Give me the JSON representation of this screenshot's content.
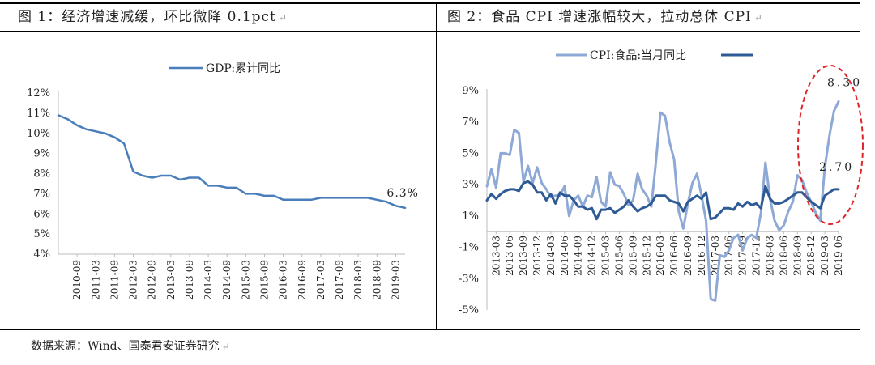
{
  "page": {
    "left_title": "图 1：经济增速减缓，环比微降 0.1pct",
    "right_title": "图 2：食品 CPI 增速涨幅较大，拉动总体 CPI",
    "source": "数据来源：Wind、国泰君安证券研究",
    "paragraph_mark": "↵"
  },
  "chart_data": [
    {
      "type": "line",
      "series": [
        {
          "name": "GDP:累计同比",
          "color": "#4a7ebb",
          "x": [
            "2010-03",
            "2010-06",
            "2010-09",
            "2010-12",
            "2011-03",
            "2011-06",
            "2011-09",
            "2011-12",
            "2012-03",
            "2012-06",
            "2012-09",
            "2012-12",
            "2013-03",
            "2013-06",
            "2013-09",
            "2013-12",
            "2014-03",
            "2014-06",
            "2014-09",
            "2014-12",
            "2015-03",
            "2015-06",
            "2015-09",
            "2015-12",
            "2016-03",
            "2016-06",
            "2016-09",
            "2016-12",
            "2017-03",
            "2017-06",
            "2017-09",
            "2017-12",
            "2018-03",
            "2018-06",
            "2018-09",
            "2018-12",
            "2019-03",
            "2019-06"
          ],
          "values": [
            10.9,
            10.7,
            10.4,
            10.2,
            10.1,
            10.0,
            9.8,
            9.5,
            8.1,
            7.9,
            7.8,
            7.9,
            7.9,
            7.7,
            7.8,
            7.8,
            7.4,
            7.4,
            7.3,
            7.3,
            7.0,
            7.0,
            6.9,
            6.9,
            6.7,
            6.7,
            6.7,
            6.7,
            6.8,
            6.8,
            6.8,
            6.8,
            6.8,
            6.8,
            6.7,
            6.6,
            6.4,
            6.3
          ]
        }
      ],
      "x_tick_labels": [
        "2010-09",
        "2011-03",
        "2011-09",
        "2012-03",
        "2012-09",
        "2013-03",
        "2013-09",
        "2014-03",
        "2014-09",
        "2015-03",
        "2015-09",
        "2016-03",
        "2016-09",
        "2017-03",
        "2017-09",
        "2018-03",
        "2018-09",
        "2019-03"
      ],
      "y_tick_labels": [
        "4%",
        "5%",
        "6%",
        "7%",
        "8%",
        "9%",
        "10%",
        "11%",
        "12%"
      ],
      "ylim": [
        4,
        12
      ],
      "annotations": [
        {
          "text": "6.3%",
          "x": "2019-06",
          "y": 6.3
        }
      ],
      "legend_position": "top-center",
      "grid": false
    },
    {
      "type": "line",
      "series": [
        {
          "name": "CPI:食品:当月同比",
          "color": "#8fa9d6",
          "x": [
            "2013-01",
            "2013-02",
            "2013-03",
            "2013-04",
            "2013-05",
            "2013-06",
            "2013-07",
            "2013-08",
            "2013-09",
            "2013-10",
            "2013-11",
            "2013-12",
            "2014-01",
            "2014-02",
            "2014-03",
            "2014-04",
            "2014-05",
            "2014-06",
            "2014-07",
            "2014-08",
            "2014-09",
            "2014-10",
            "2014-11",
            "2014-12",
            "2015-01",
            "2015-02",
            "2015-03",
            "2015-04",
            "2015-05",
            "2015-06",
            "2015-07",
            "2015-08",
            "2015-09",
            "2015-10",
            "2015-11",
            "2015-12",
            "2016-01",
            "2016-02",
            "2016-03",
            "2016-04",
            "2016-05",
            "2016-06",
            "2016-07",
            "2016-08",
            "2016-09",
            "2016-10",
            "2016-11",
            "2016-12",
            "2017-01",
            "2017-02",
            "2017-03",
            "2017-04",
            "2017-05",
            "2017-06",
            "2017-07",
            "2017-08",
            "2017-09",
            "2017-10",
            "2017-11",
            "2017-12",
            "2018-01",
            "2018-02",
            "2018-03",
            "2018-04",
            "2018-05",
            "2018-06",
            "2018-07",
            "2018-08",
            "2018-09",
            "2018-10",
            "2018-11",
            "2018-12",
            "2019-01",
            "2019-02",
            "2019-03",
            "2019-04",
            "2019-05",
            "2019-06"
          ],
          "values": [
            2.9,
            4.0,
            2.8,
            5.0,
            5.0,
            4.9,
            6.5,
            6.3,
            3.2,
            4.2,
            3.1,
            4.1,
            3.1,
            2.7,
            2.2,
            2.3,
            2.3,
            2.9,
            1.0,
            2.0,
            2.3,
            1.6,
            2.3,
            2.2,
            3.5,
            1.9,
            1.6,
            3.8,
            3.0,
            2.9,
            2.4,
            1.7,
            2.0,
            3.7,
            2.7,
            2.3,
            1.6,
            4.4,
            7.6,
            7.4,
            5.7,
            4.6,
            1.3,
            0.2,
            1.8,
            3.1,
            3.7,
            2.3,
            0.7,
            -4.3,
            -4.4,
            -1.5,
            -1.6,
            -1.2,
            -0.4,
            -0.2,
            -1.2,
            -0.4,
            -0.2,
            -0.4,
            1.2,
            4.4,
            2.1,
            0.7,
            0.1,
            0.4,
            1.3,
            1.9,
            3.6,
            3.3,
            2.5,
            1.9,
            1.2,
            0.7,
            4.1,
            6.1,
            7.7,
            8.3
          ]
        },
        {
          "name": "",
          "color": "#2e5b95",
          "x": [
            "2013-01",
            "2013-02",
            "2013-03",
            "2013-04",
            "2013-05",
            "2013-06",
            "2013-07",
            "2013-08",
            "2013-09",
            "2013-10",
            "2013-11",
            "2013-12",
            "2014-01",
            "2014-02",
            "2014-03",
            "2014-04",
            "2014-05",
            "2014-06",
            "2014-07",
            "2014-08",
            "2014-09",
            "2014-10",
            "2014-11",
            "2014-12",
            "2015-01",
            "2015-02",
            "2015-03",
            "2015-04",
            "2015-05",
            "2015-06",
            "2015-07",
            "2015-08",
            "2015-09",
            "2015-10",
            "2015-11",
            "2015-12",
            "2016-01",
            "2016-02",
            "2016-03",
            "2016-04",
            "2016-05",
            "2016-06",
            "2016-07",
            "2016-08",
            "2016-09",
            "2016-10",
            "2016-11",
            "2016-12",
            "2017-01",
            "2017-02",
            "2017-03",
            "2017-04",
            "2017-05",
            "2017-06",
            "2017-07",
            "2017-08",
            "2017-09",
            "2017-10",
            "2017-11",
            "2017-12",
            "2018-01",
            "2018-02",
            "2018-03",
            "2018-04",
            "2018-05",
            "2018-06",
            "2018-07",
            "2018-08",
            "2018-09",
            "2018-10",
            "2018-11",
            "2018-12",
            "2019-01",
            "2019-02",
            "2019-03",
            "2019-04",
            "2019-05",
            "2019-06"
          ],
          "values": [
            2.0,
            2.4,
            2.1,
            2.4,
            2.6,
            2.7,
            2.7,
            2.6,
            3.1,
            3.2,
            3.0,
            2.5,
            2.5,
            2.0,
            2.4,
            1.8,
            2.5,
            2.3,
            2.3,
            2.0,
            1.6,
            1.6,
            1.4,
            1.5,
            0.8,
            1.4,
            1.4,
            1.5,
            1.2,
            1.4,
            1.6,
            2.0,
            1.6,
            1.3,
            1.5,
            1.6,
            1.8,
            2.3,
            2.3,
            2.3,
            2.0,
            1.9,
            1.8,
            1.3,
            1.9,
            2.1,
            2.3,
            2.1,
            2.5,
            0.8,
            0.9,
            1.2,
            1.5,
            1.5,
            1.4,
            1.8,
            1.6,
            1.9,
            1.7,
            1.8,
            1.5,
            2.9,
            2.1,
            1.8,
            1.8,
            1.9,
            2.1,
            2.3,
            2.5,
            2.5,
            2.2,
            1.9,
            1.7,
            1.5,
            2.3,
            2.5,
            2.7,
            2.7
          ]
        }
      ],
      "x_tick_labels": [
        "2013-03",
        "2013-06",
        "2013-09",
        "2013-12",
        "2014-03",
        "2014-06",
        "2014-09",
        "2014-12",
        "2015-03",
        "2015-06",
        "2015-09",
        "2015-12",
        "2016-03",
        "2016-06",
        "2016-09",
        "2016-12",
        "2017-03",
        "2017-06",
        "2017-09",
        "2017-12",
        "2018-03",
        "2018-06",
        "2018-09",
        "2018-12",
        "2019-03",
        "2019-06"
      ],
      "y_tick_labels": [
        "-5%",
        "-3%",
        "-1%",
        "1%",
        "3%",
        "5%",
        "7%",
        "9%"
      ],
      "ylim": [
        -5,
        9
      ],
      "annotations": [
        {
          "text": "8.30",
          "x": "2019-06",
          "y": 8.3
        },
        {
          "text": "2.70",
          "x": "2019-06",
          "y": 2.7
        }
      ],
      "highlight": {
        "shape": "ellipse",
        "color": "#e0262a",
        "style": "dashed"
      },
      "legend_position": "top-center",
      "grid": false
    }
  ]
}
